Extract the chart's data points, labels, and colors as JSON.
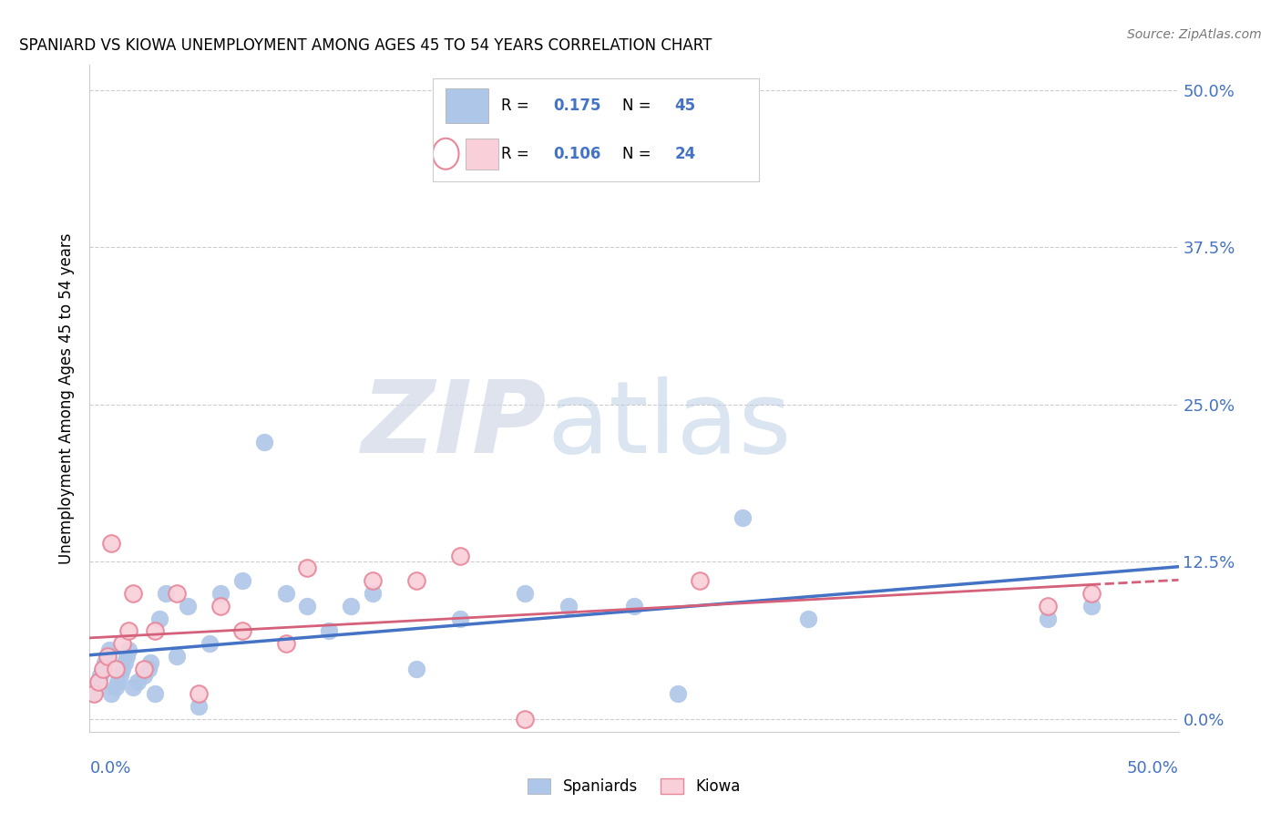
{
  "title": "SPANIARD VS KIOWA UNEMPLOYMENT AMONG AGES 45 TO 54 YEARS CORRELATION CHART",
  "source": "Source: ZipAtlas.com",
  "ylabel": "Unemployment Among Ages 45 to 54 years",
  "xlim": [
    0.0,
    0.5
  ],
  "ylim": [
    -0.01,
    0.52
  ],
  "ytick_values": [
    0.0,
    0.125,
    0.25,
    0.375,
    0.5
  ],
  "ytick_labels": [
    "0.0%",
    "12.5%",
    "25.0%",
    "37.5%",
    "50.0%"
  ],
  "xtick_values": [
    0.0,
    0.125,
    0.25,
    0.375,
    0.5
  ],
  "spaniards_R": "0.175",
  "spaniards_N": "45",
  "kiowa_R": "0.106",
  "kiowa_N": "24",
  "spaniards_color": "#aec6e8",
  "kiowa_color_fill": "#f9d0da",
  "kiowa_color_edge": "#e8879a",
  "spaniards_line_color": "#4472c4",
  "kiowa_line_color": "#d4607a",
  "axis_label_color": "#4472c4",
  "watermark_zip_color": "#d0d8e8",
  "watermark_atlas_color": "#b8cce4",
  "spaniards_x": [
    0.002,
    0.004,
    0.005,
    0.006,
    0.007,
    0.008,
    0.009,
    0.01,
    0.012,
    0.013,
    0.014,
    0.015,
    0.016,
    0.017,
    0.018,
    0.02,
    0.022,
    0.025,
    0.027,
    0.028,
    0.03,
    0.032,
    0.035,
    0.04,
    0.045,
    0.05,
    0.055,
    0.06,
    0.07,
    0.08,
    0.09,
    0.1,
    0.11,
    0.12,
    0.13,
    0.15,
    0.17,
    0.2,
    0.22,
    0.25,
    0.27,
    0.3,
    0.33,
    0.44,
    0.46
  ],
  "spaniards_y": [
    0.02,
    0.03,
    0.035,
    0.04,
    0.045,
    0.05,
    0.055,
    0.02,
    0.025,
    0.03,
    0.035,
    0.04,
    0.045,
    0.05,
    0.055,
    0.025,
    0.03,
    0.035,
    0.04,
    0.045,
    0.02,
    0.08,
    0.1,
    0.05,
    0.09,
    0.01,
    0.06,
    0.1,
    0.11,
    0.22,
    0.1,
    0.09,
    0.07,
    0.09,
    0.1,
    0.04,
    0.08,
    0.1,
    0.09,
    0.09,
    0.02,
    0.16,
    0.08,
    0.08,
    0.09
  ],
  "kiowa_x": [
    0.002,
    0.004,
    0.006,
    0.008,
    0.01,
    0.012,
    0.015,
    0.018,
    0.02,
    0.025,
    0.03,
    0.04,
    0.05,
    0.06,
    0.07,
    0.09,
    0.1,
    0.13,
    0.15,
    0.17,
    0.2,
    0.28,
    0.44,
    0.46
  ],
  "kiowa_y": [
    0.02,
    0.03,
    0.04,
    0.05,
    0.14,
    0.04,
    0.06,
    0.07,
    0.1,
    0.04,
    0.07,
    0.1,
    0.02,
    0.09,
    0.07,
    0.06,
    0.12,
    0.11,
    0.11,
    0.13,
    0.0,
    0.11,
    0.09,
    0.1
  ]
}
